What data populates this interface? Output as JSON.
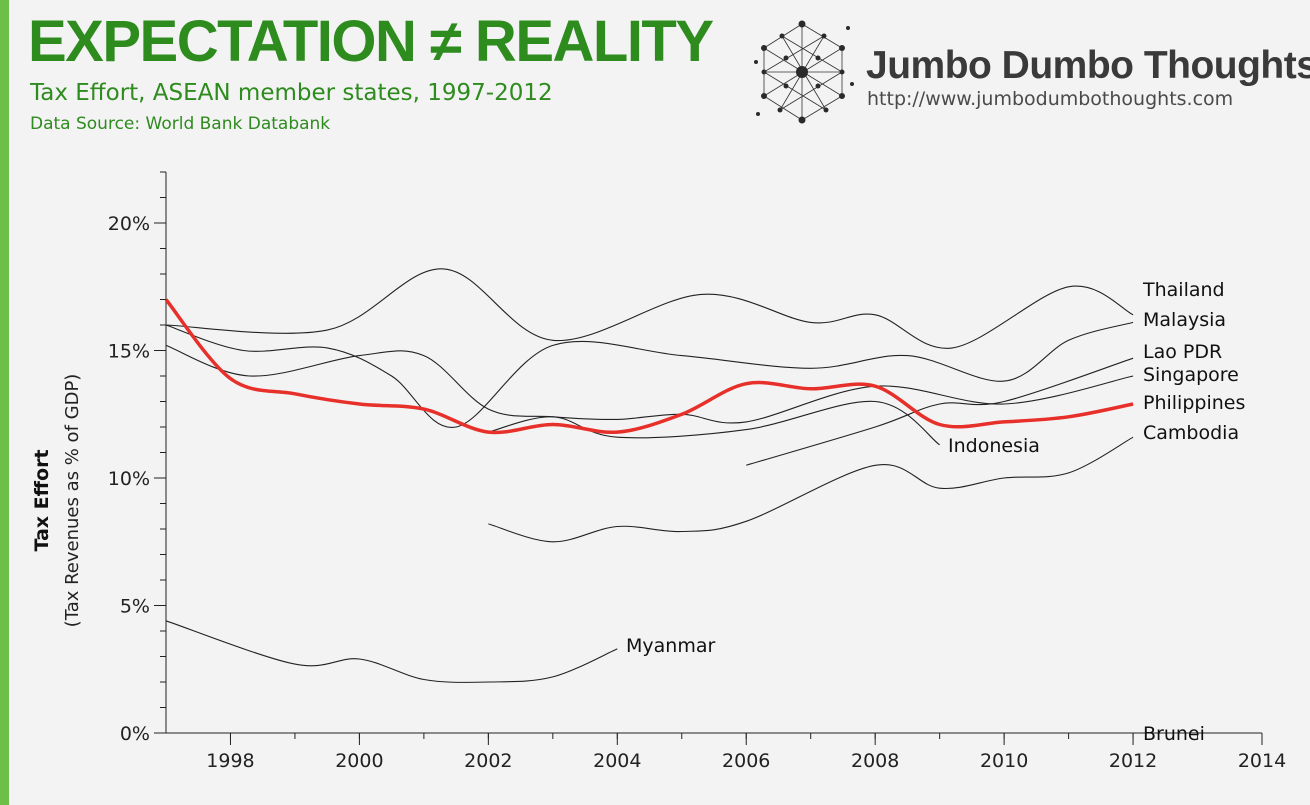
{
  "header": {
    "title": "EXPECTATION ≠ REALITY",
    "subtitle": "Tax Effort, ASEAN member states, 1997-2012",
    "source": "Data Source: World Bank Databank"
  },
  "logo": {
    "name": "Jumbo Dumbo Thoughts",
    "url": "http://www.jumbodumbothoughts.com",
    "icon": "network-logo-icon"
  },
  "colors": {
    "accent": "#6cc04a",
    "title": "#2e8b1e",
    "highlight": "#e8302a",
    "lines": "#222222"
  },
  "chart_data": {
    "type": "line",
    "ylabel_bold": "Tax Effort",
    "ylabel": "(Tax Revenues as % of GDP)",
    "xlabel": "",
    "xlim": [
      1997,
      2014
    ],
    "ylim": [
      0,
      22
    ],
    "x_ticks": [
      1998,
      2000,
      2002,
      2004,
      2006,
      2008,
      2010,
      2012,
      2014
    ],
    "y_ticks": [
      {
        "value": 0,
        "label": "0%"
      },
      {
        "value": 5,
        "label": "5%"
      },
      {
        "value": 10,
        "label": "10%"
      },
      {
        "value": 15,
        "label": "15%"
      },
      {
        "value": 20,
        "label": "20%"
      }
    ],
    "grid": false,
    "legend": "direct labels at line ends",
    "highlight_series": "Philippines",
    "series": [
      {
        "name": "Thailand",
        "x": [
          1997,
          1999.5,
          2001.3,
          2003,
          2005.3,
          2007,
          2008,
          2009.2,
          2011,
          2012
        ],
        "y": [
          16.0,
          15.8,
          18.2,
          15.4,
          17.2,
          16.1,
          16.4,
          15.1,
          17.5,
          16.4
        ]
      },
      {
        "name": "Malaysia",
        "x": [
          1997,
          1998.2,
          1999.5,
          2000.5,
          2001.5,
          2003,
          2005,
          2007,
          2008.5,
          2010,
          2011,
          2012
        ],
        "y": [
          16.0,
          15.0,
          15.1,
          14.0,
          12.0,
          15.2,
          14.8,
          14.3,
          14.8,
          13.8,
          15.4,
          16.1
        ]
      },
      {
        "name": "Lao PDR",
        "x": [
          2006,
          2008,
          2009,
          2010,
          2012
        ],
        "y": [
          10.5,
          12.0,
          12.9,
          13.0,
          14.7
        ]
      },
      {
        "name": "Singapore",
        "x": [
          1997,
          1998.3,
          2000,
          2001,
          2002,
          2003,
          2004,
          2005,
          2006,
          2008,
          2010,
          2012
        ],
        "y": [
          15.2,
          14.0,
          14.8,
          14.8,
          12.7,
          12.4,
          12.3,
          12.5,
          12.2,
          13.6,
          12.9,
          14.0
        ]
      },
      {
        "name": "Philippines",
        "x": [
          1997,
          1998,
          1999,
          2000,
          2001,
          2002,
          2003,
          2004,
          2005,
          2006,
          2007,
          2008,
          2009,
          2010,
          2011,
          2012
        ],
        "y": [
          17.0,
          13.9,
          13.3,
          12.9,
          12.7,
          11.8,
          12.1,
          11.8,
          12.5,
          13.7,
          13.5,
          13.6,
          12.1,
          12.2,
          12.4,
          12.9
        ]
      },
      {
        "name": "Indonesia",
        "x": [
          2002,
          2003,
          2004,
          2006,
          2008,
          2009
        ],
        "y": [
          11.8,
          12.4,
          11.6,
          11.9,
          13.0,
          11.3
        ]
      },
      {
        "name": "Cambodia",
        "x": [
          2002,
          2003,
          2004,
          2005,
          2006,
          2008,
          2009,
          2010,
          2011,
          2012
        ],
        "y": [
          8.2,
          7.5,
          8.1,
          7.9,
          8.3,
          10.5,
          9.6,
          10.0,
          10.2,
          11.6
        ]
      },
      {
        "name": "Myanmar",
        "x": [
          1997,
          1999,
          2000,
          2001,
          2002,
          2003,
          2004
        ],
        "y": [
          4.4,
          2.7,
          2.9,
          2.1,
          2.0,
          2.2,
          3.3
        ]
      },
      {
        "name": "Brunei",
        "x": [
          2012
        ],
        "y": [
          0
        ]
      }
    ]
  }
}
